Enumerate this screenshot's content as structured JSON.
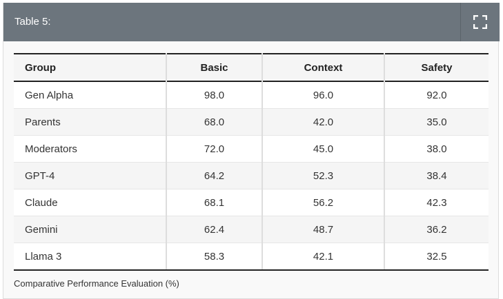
{
  "header": {
    "title": "Table 5:",
    "expand_icon": "expand-icon"
  },
  "table": {
    "columns": [
      "Group",
      "Basic",
      "Context",
      "Safety"
    ],
    "rows": [
      [
        "Gen Alpha",
        "98.0",
        "96.0",
        "92.0"
      ],
      [
        "Parents",
        "68.0",
        "42.0",
        "35.0"
      ],
      [
        "Moderators",
        "72.0",
        "45.0",
        "38.0"
      ],
      [
        "GPT-4",
        "64.2",
        "52.3",
        "38.4"
      ],
      [
        "Claude",
        "68.1",
        "56.2",
        "42.3"
      ],
      [
        "Gemini",
        "62.4",
        "48.7",
        "36.2"
      ],
      [
        "Llama 3",
        "58.3",
        "42.1",
        "32.5"
      ]
    ]
  },
  "caption": "Comparative Performance Evaluation (%)",
  "colors": {
    "header_bg": "#6c757d",
    "panel_bg": "#f9f9f9",
    "rule": "#222222"
  }
}
